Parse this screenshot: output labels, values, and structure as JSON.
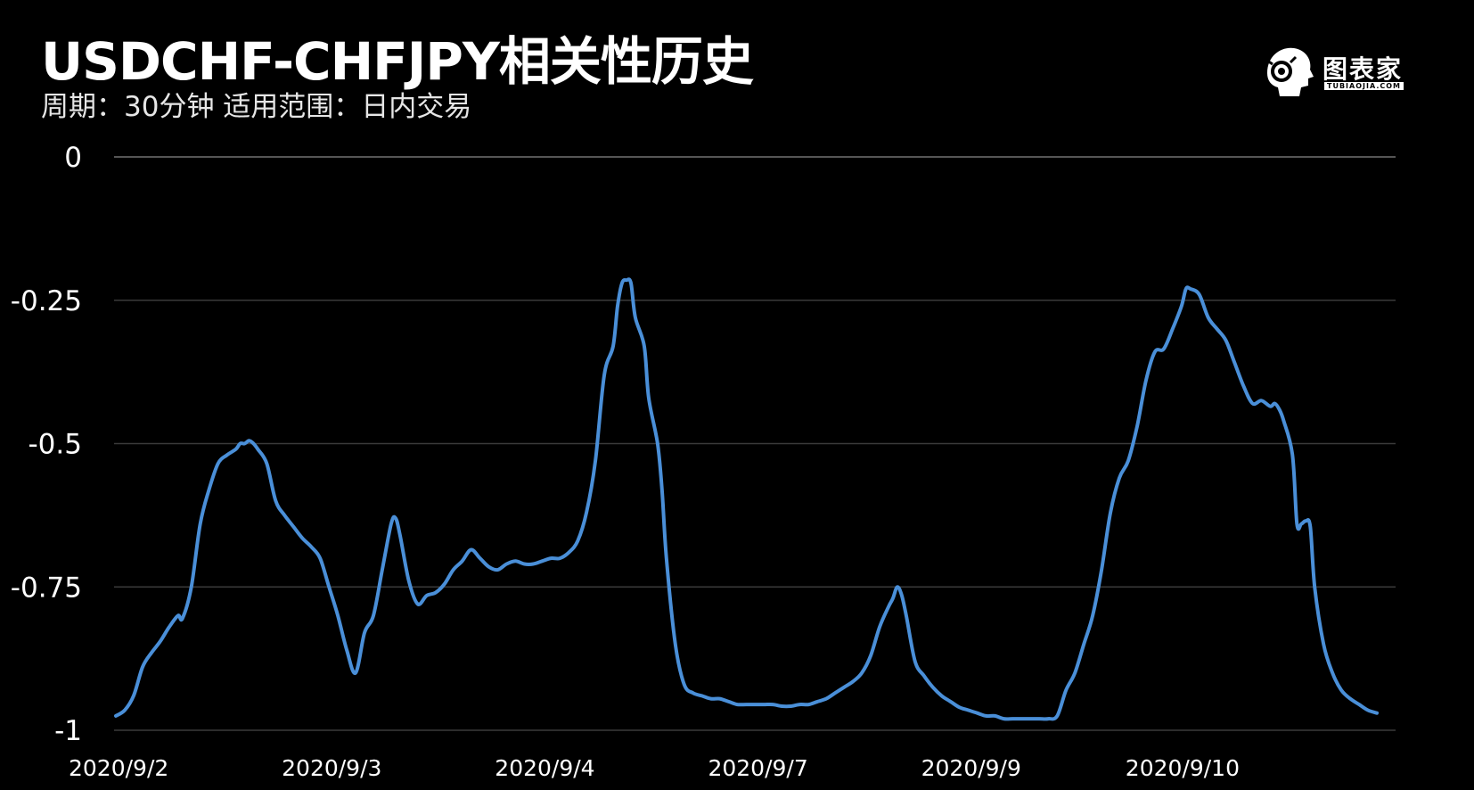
{
  "title": "USDCHF-CHFJPY相关性历史",
  "subtitle": "周期：30分钟  适用范围：日内交易",
  "logo": {
    "name": "图表家",
    "sub": "TUBIAOJIA.COM",
    "icon": "head-gear-icon"
  },
  "colors": {
    "background": "#000000",
    "line": "#4a8fd8",
    "grid": "#3a3a3a",
    "text": "#ffffff"
  },
  "chart_data": {
    "type": "line",
    "title": "USDCHF-CHFJPY相关性历史",
    "xlabel": "",
    "ylabel": "",
    "ylim": [
      -1,
      0
    ],
    "grid": true,
    "y_ticks": [
      {
        "value": 0,
        "label": "0"
      },
      {
        "value": -0.25,
        "label": "-0.25"
      },
      {
        "value": -0.5,
        "label": "-0.5"
      },
      {
        "value": -0.75,
        "label": "-0.75"
      },
      {
        "value": -1,
        "label": "-1"
      }
    ],
    "x_ticks": [
      {
        "x": 0,
        "label": "2020/9/2"
      },
      {
        "x": 48,
        "label": "2020/9/3"
      },
      {
        "x": 96,
        "label": "2020/9/4"
      },
      {
        "x": 144,
        "label": "2020/9/7"
      },
      {
        "x": 192,
        "label": "2020/9/9"
      },
      {
        "x": 238,
        "label": "2020/9/10"
      }
    ],
    "xlim": [
      0,
      284
    ],
    "series": [
      {
        "name": "",
        "points": [
          [
            0,
            -0.975
          ],
          [
            2,
            -0.965
          ],
          [
            4,
            -0.94
          ],
          [
            6,
            -0.89
          ],
          [
            8,
            -0.865
          ],
          [
            10,
            -0.845
          ],
          [
            12,
            -0.82
          ],
          [
            14,
            -0.8
          ],
          [
            15,
            -0.805
          ],
          [
            17,
            -0.75
          ],
          [
            19,
            -0.64
          ],
          [
            21,
            -0.58
          ],
          [
            23,
            -0.535
          ],
          [
            25,
            -0.52
          ],
          [
            27,
            -0.51
          ],
          [
            28,
            -0.5
          ],
          [
            29,
            -0.5
          ],
          [
            30,
            -0.495
          ],
          [
            31,
            -0.5
          ],
          [
            32,
            -0.51
          ],
          [
            34,
            -0.535
          ],
          [
            36,
            -0.6
          ],
          [
            38,
            -0.625
          ],
          [
            40,
            -0.645
          ],
          [
            42,
            -0.665
          ],
          [
            44,
            -0.68
          ],
          [
            46,
            -0.7
          ],
          [
            48,
            -0.75
          ],
          [
            50,
            -0.8
          ],
          [
            52,
            -0.86
          ],
          [
            54,
            -0.9
          ],
          [
            56,
            -0.83
          ],
          [
            58,
            -0.8
          ],
          [
            60,
            -0.72
          ],
          [
            62,
            -0.64
          ],
          [
            63,
            -0.63
          ],
          [
            64,
            -0.66
          ],
          [
            66,
            -0.74
          ],
          [
            68,
            -0.78
          ],
          [
            70,
            -0.765
          ],
          [
            72,
            -0.76
          ],
          [
            74,
            -0.745
          ],
          [
            76,
            -0.72
          ],
          [
            78,
            -0.705
          ],
          [
            80,
            -0.685
          ],
          [
            82,
            -0.7
          ],
          [
            84,
            -0.715
          ],
          [
            86,
            -0.72
          ],
          [
            88,
            -0.71
          ],
          [
            90,
            -0.705
          ],
          [
            92,
            -0.71
          ],
          [
            94,
            -0.71
          ],
          [
            96,
            -0.705
          ],
          [
            98,
            -0.7
          ],
          [
            100,
            -0.7
          ],
          [
            102,
            -0.69
          ],
          [
            104,
            -0.67
          ],
          [
            106,
            -0.62
          ],
          [
            108,
            -0.53
          ],
          [
            110,
            -0.38
          ],
          [
            112,
            -0.33
          ],
          [
            113,
            -0.26
          ],
          [
            114,
            -0.22
          ],
          [
            115,
            -0.215
          ],
          [
            116,
            -0.22
          ],
          [
            117,
            -0.28
          ],
          [
            119,
            -0.33
          ],
          [
            120,
            -0.42
          ],
          [
            122,
            -0.5
          ],
          [
            123,
            -0.58
          ],
          [
            124,
            -0.7
          ],
          [
            126,
            -0.85
          ],
          [
            128,
            -0.92
          ],
          [
            130,
            -0.935
          ],
          [
            132,
            -0.94
          ],
          [
            134,
            -0.945
          ],
          [
            136,
            -0.945
          ],
          [
            138,
            -0.95
          ],
          [
            140,
            -0.955
          ],
          [
            142,
            -0.955
          ],
          [
            144,
            -0.955
          ],
          [
            146,
            -0.955
          ],
          [
            148,
            -0.955
          ],
          [
            150,
            -0.958
          ],
          [
            152,
            -0.958
          ],
          [
            154,
            -0.955
          ],
          [
            156,
            -0.955
          ],
          [
            158,
            -0.95
          ],
          [
            160,
            -0.945
          ],
          [
            162,
            -0.935
          ],
          [
            164,
            -0.925
          ],
          [
            166,
            -0.915
          ],
          [
            168,
            -0.9
          ],
          [
            170,
            -0.87
          ],
          [
            172,
            -0.82
          ],
          [
            174,
            -0.785
          ],
          [
            175,
            -0.77
          ],
          [
            176,
            -0.75
          ],
          [
            177,
            -0.765
          ],
          [
            178,
            -0.8
          ],
          [
            180,
            -0.88
          ],
          [
            182,
            -0.905
          ],
          [
            184,
            -0.925
          ],
          [
            186,
            -0.94
          ],
          [
            188,
            -0.95
          ],
          [
            190,
            -0.96
          ],
          [
            192,
            -0.965
          ],
          [
            194,
            -0.97
          ],
          [
            196,
            -0.975
          ],
          [
            198,
            -0.975
          ],
          [
            200,
            -0.98
          ],
          [
            202,
            -0.98
          ],
          [
            204,
            -0.98
          ],
          [
            206,
            -0.98
          ],
          [
            208,
            -0.98
          ],
          [
            210,
            -0.98
          ],
          [
            212,
            -0.975
          ],
          [
            214,
            -0.93
          ],
          [
            216,
            -0.9
          ],
          [
            218,
            -0.85
          ],
          [
            220,
            -0.8
          ],
          [
            222,
            -0.72
          ],
          [
            224,
            -0.62
          ],
          [
            226,
            -0.56
          ],
          [
            228,
            -0.53
          ],
          [
            230,
            -0.47
          ],
          [
            232,
            -0.39
          ],
          [
            234,
            -0.34
          ],
          [
            236,
            -0.335
          ],
          [
            238,
            -0.3
          ],
          [
            240,
            -0.26
          ],
          [
            241,
            -0.23
          ],
          [
            242,
            -0.23
          ],
          [
            244,
            -0.24
          ],
          [
            246,
            -0.28
          ],
          [
            248,
            -0.3
          ],
          [
            250,
            -0.32
          ],
          [
            252,
            -0.36
          ],
          [
            254,
            -0.4
          ],
          [
            256,
            -0.43
          ],
          [
            258,
            -0.425
          ],
          [
            260,
            -0.435
          ],
          [
            261,
            -0.43
          ],
          [
            262,
            -0.44
          ],
          [
            263,
            -0.46
          ],
          [
            265,
            -0.52
          ],
          [
            266,
            -0.64
          ],
          [
            267,
            -0.64
          ],
          [
            268,
            -0.635
          ],
          [
            269,
            -0.645
          ],
          [
            270,
            -0.75
          ],
          [
            272,
            -0.85
          ],
          [
            274,
            -0.9
          ],
          [
            276,
            -0.93
          ],
          [
            278,
            -0.945
          ],
          [
            280,
            -0.955
          ],
          [
            282,
            -0.965
          ],
          [
            284,
            -0.97
          ]
        ]
      }
    ]
  }
}
